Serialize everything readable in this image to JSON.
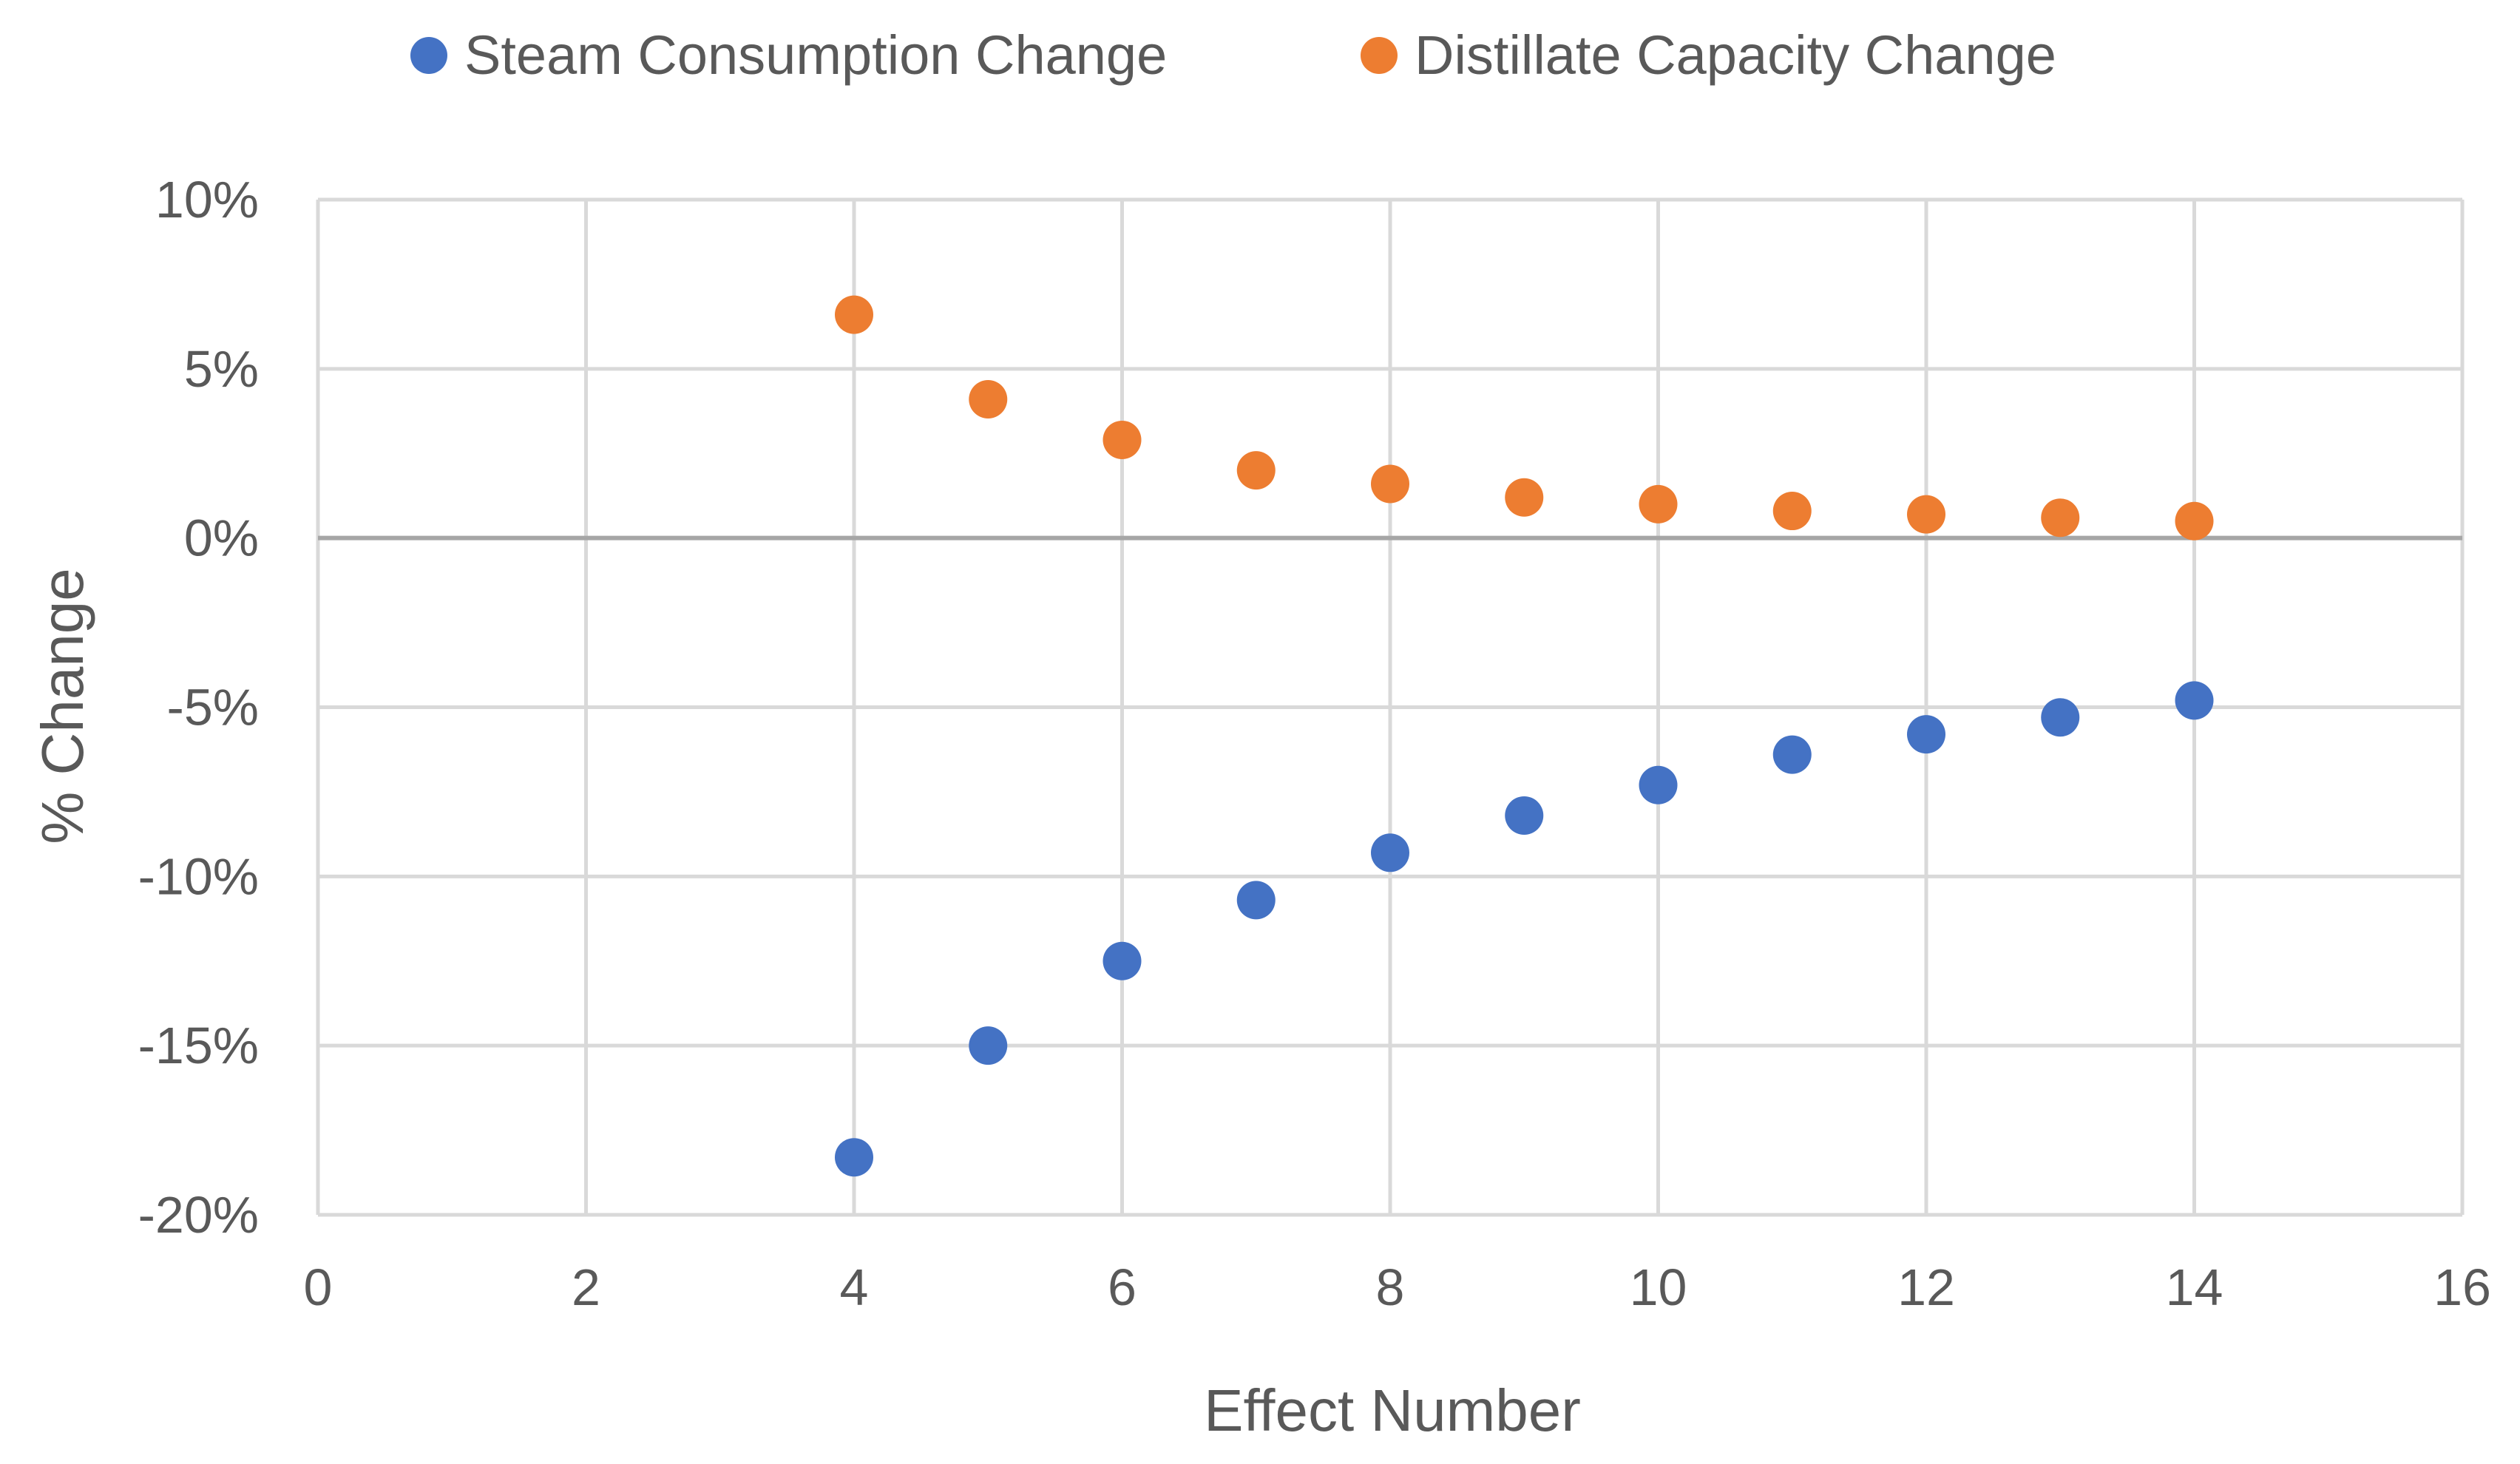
{
  "chart_data": {
    "type": "scatter",
    "title": "",
    "xlabel": "Effect Number",
    "ylabel": "% Change",
    "xlim": [
      0,
      16
    ],
    "ylim": [
      -20,
      10
    ],
    "xticks": [
      0,
      2,
      4,
      6,
      8,
      10,
      12,
      14,
      16
    ],
    "yticks": [
      10,
      5,
      0,
      -5,
      -10,
      -15,
      -20
    ],
    "ytick_labels": [
      "10%",
      "5%",
      "0%",
      "-5%",
      "-10%",
      "-15%",
      "-20%"
    ],
    "grid": true,
    "legend_position": "top",
    "series": [
      {
        "name": "Steam Consumption Change",
        "color": "#4472C4",
        "x": [
          4,
          5,
          6,
          7,
          8,
          9,
          10,
          11,
          12,
          13,
          14
        ],
        "y": [
          -18.3,
          -15.0,
          -12.5,
          -10.7,
          -9.3,
          -8.2,
          -7.3,
          -6.4,
          -5.8,
          -5.3,
          -4.8
        ]
      },
      {
        "name": "Distillate Capacity Change",
        "color": "#ED7D31",
        "x": [
          4,
          5,
          6,
          7,
          8,
          9,
          10,
          11,
          12,
          13,
          14
        ],
        "y": [
          6.6,
          4.1,
          2.9,
          2.0,
          1.6,
          1.2,
          1.0,
          0.8,
          0.7,
          0.6,
          0.5
        ]
      }
    ]
  }
}
